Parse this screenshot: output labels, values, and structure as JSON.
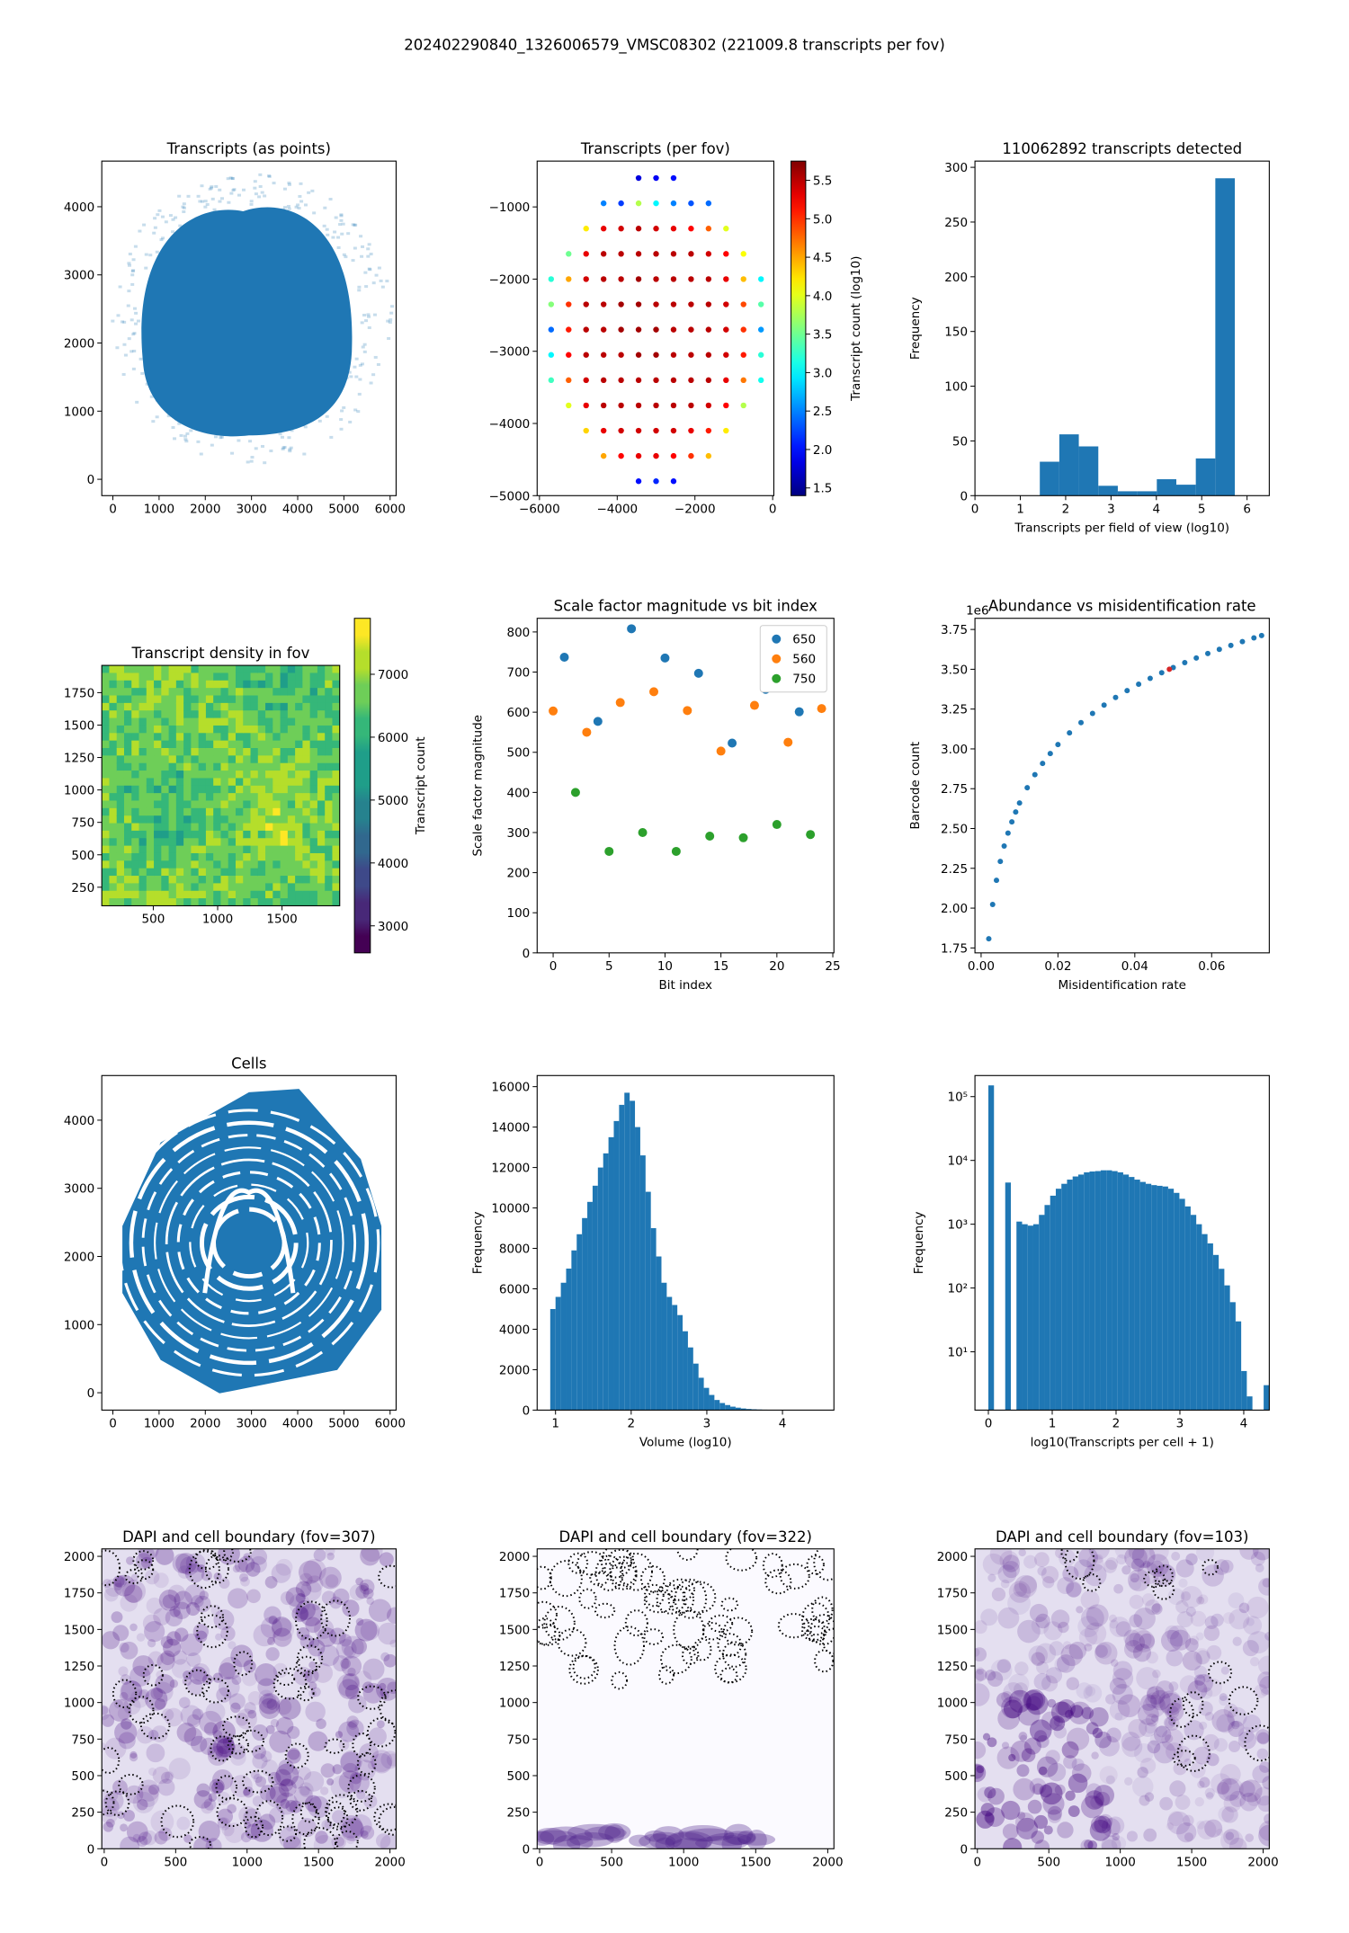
{
  "title": "202402290840_1326006579_VMSC08302 (221009.8 transcripts per fov)",
  "chart_data": [
    {
      "type": "image",
      "title": "Transcripts (as points)",
      "xlim": [
        -240,
        6130
      ],
      "ylim": [
        -240,
        4670
      ],
      "xticks": [
        0,
        1000,
        2000,
        3000,
        4000,
        5000,
        6000
      ],
      "yticks": [
        0,
        1000,
        2000,
        3000,
        4000
      ]
    },
    {
      "type": "grid_scatter",
      "title": "Transcripts (per fov)",
      "xlim": [
        -6060,
        30
      ],
      "ylim": [
        -5000,
        -365
      ],
      "xticks": [
        {
          "value": -6000,
          "label": "−6000"
        },
        {
          "value": -4000,
          "label": "−4000"
        },
        {
          "value": -2000,
          "label": "−2000"
        },
        0
      ],
      "yticks": [
        {
          "value": -5000,
          "label": "−5000"
        },
        {
          "value": -4000,
          "label": "−4000"
        },
        {
          "value": -3000,
          "label": "−3000"
        },
        {
          "value": -2000,
          "label": "−2000"
        },
        {
          "value": -1000,
          "label": "−1000"
        }
      ],
      "x": [
        -5700,
        -5250,
        -4800,
        -4350,
        -3900,
        -3450,
        -3000,
        -2550,
        -2100,
        -1650,
        -1200,
        -750,
        -300
      ],
      "y": [
        -600,
        -950,
        -1300,
        -1650,
        -2000,
        -2350,
        -2700,
        -3050,
        -3400,
        -3750,
        -4100,
        -4450,
        -4800
      ],
      "z": [
        [
          null,
          null,
          null,
          null,
          null,
          1.8,
          1.9,
          2.0,
          null,
          null,
          null,
          null,
          null
        ],
        [
          null,
          null,
          null,
          2.5,
          2.2,
          3.8,
          3.0,
          2.5,
          2.3,
          2.4,
          null,
          null,
          null
        ],
        [
          null,
          null,
          4.2,
          5.3,
          5.4,
          5.5,
          5.4,
          5.3,
          5.2,
          4.8,
          4.0,
          null,
          null
        ],
        [
          null,
          3.5,
          5.3,
          5.5,
          5.5,
          5.5,
          5.5,
          5.5,
          5.5,
          5.4,
          5.2,
          4.1,
          null
        ],
        [
          3.2,
          4.5,
          5.4,
          5.5,
          5.5,
          5.6,
          5.5,
          5.5,
          5.5,
          5.5,
          5.3,
          4.4,
          3.0
        ],
        [
          3.6,
          5.0,
          5.5,
          5.5,
          5.6,
          5.6,
          5.5,
          5.5,
          5.5,
          5.5,
          5.4,
          4.9,
          3.4
        ],
        [
          2.4,
          5.1,
          5.5,
          5.5,
          5.6,
          5.6,
          5.6,
          5.5,
          5.5,
          5.5,
          5.4,
          5.0,
          2.6
        ],
        [
          3.0,
          5.2,
          5.5,
          5.5,
          5.5,
          5.6,
          5.6,
          5.5,
          5.5,
          5.5,
          5.4,
          5.1,
          3.2
        ],
        [
          3.3,
          4.8,
          5.4,
          5.5,
          5.5,
          5.5,
          5.5,
          5.5,
          5.5,
          5.5,
          5.3,
          4.7,
          3.1
        ],
        [
          null,
          4.0,
          5.3,
          5.5,
          5.5,
          5.5,
          5.5,
          5.5,
          5.5,
          5.4,
          5.2,
          3.8,
          null
        ],
        [
          null,
          null,
          4.3,
          5.3,
          5.4,
          5.4,
          5.4,
          5.4,
          5.3,
          5.1,
          4.2,
          null,
          null
        ],
        [
          null,
          null,
          null,
          4.5,
          5.2,
          5.3,
          5.3,
          5.2,
          5.0,
          4.4,
          null,
          null,
          null
        ],
        [
          null,
          null,
          null,
          null,
          null,
          2.0,
          2.1,
          2.0,
          null,
          null,
          null,
          null,
          null
        ]
      ],
      "colorbar": {
        "label": "Transcript count (log10)",
        "colormap": "jet",
        "clim": [
          1.4,
          5.75
        ],
        "ticks": [
          1.5,
          {
            "value": 2,
            "label": "2.0"
          },
          2.5,
          {
            "value": 3,
            "label": "3.0"
          },
          3.5,
          {
            "value": 4,
            "label": "4.0"
          },
          4.5,
          {
            "value": 5,
            "label": "5.0"
          },
          5.5
        ]
      }
    },
    {
      "type": "hist",
      "title": "110062892 transcripts detected",
      "xlabel": "Transcripts per field of view (log10)",
      "ylabel": "Frequency",
      "color": "#1f77b4",
      "xlim": [
        0,
        6.49
      ],
      "ylim": [
        0,
        305.7
      ],
      "xticks": [
        0,
        1,
        2,
        3,
        4,
        5,
        6
      ],
      "yticks": [
        0,
        50,
        100,
        150,
        200,
        250,
        300
      ],
      "bins": [
        1.43,
        1.86,
        2.29,
        2.72,
        3.15,
        3.58,
        4.01,
        4.44,
        4.87,
        5.3,
        5.73
      ],
      "counts": [
        31,
        56,
        45,
        9,
        4,
        4,
        15,
        10,
        34,
        290
      ]
    },
    {
      "type": "image",
      "title": "Transcript density in fov",
      "xlim": [
        100,
        1948
      ],
      "ylim": [
        107,
        1960
      ],
      "xticks": [
        500,
        1000,
        1500
      ],
      "yticks": [
        250,
        500,
        750,
        1000,
        1250,
        1500,
        1750
      ],
      "colorbar": {
        "label": "Transcript count",
        "colormap": "viridis",
        "clim": [
          2570,
          7890
        ],
        "ticks": [
          3000,
          4000,
          5000,
          6000,
          7000
        ]
      }
    },
    {
      "type": "scatter",
      "title": "Scale factor magnitude vs bit index",
      "xlabel": "Bit index",
      "ylabel": "Scale factor magnitude",
      "legend": "upper right",
      "xlim": [
        -1.43,
        25.1
      ],
      "ylim": [
        0,
        834
      ],
      "xticks": [
        0,
        5,
        10,
        15,
        20,
        25
      ],
      "yticks": [
        0,
        100,
        200,
        300,
        400,
        500,
        600,
        700,
        800
      ],
      "series": [
        {
          "name": "650",
          "color": "#1f77b4",
          "x": [
            1,
            4,
            7,
            10,
            13,
            16,
            19,
            22
          ],
          "values": [
            737,
            577,
            808,
            735,
            697,
            523,
            657,
            601
          ]
        },
        {
          "name": "560",
          "color": "#ff7f0e",
          "x": [
            0,
            3,
            6,
            9,
            12,
            15,
            18,
            21,
            24
          ],
          "values": [
            603,
            550,
            624,
            651,
            604,
            503,
            617,
            525,
            609
          ]
        },
        {
          "name": "750",
          "color": "#2ca02c",
          "x": [
            2,
            5,
            8,
            11,
            14,
            17,
            20,
            23
          ],
          "values": [
            400,
            253,
            300,
            253,
            291,
            287,
            320,
            295
          ]
        }
      ]
    },
    {
      "type": "scatter",
      "title": "Abundance vs misidentification rate",
      "xlabel": "Misidentification rate",
      "ylabel": "Barcode count",
      "offset_text": "1e6",
      "marker_size": "small",
      "xlim": [
        -0.0016,
        0.075
      ],
      "ylim": [
        1.719,
        3.82
      ],
      "xticks": [
        {
          "value": 0,
          "label": "0.00"
        },
        0.02,
        0.04,
        0.06
      ],
      "yticks": [
        1.75,
        {
          "value": 2,
          "label": "2.00"
        },
        2.25,
        {
          "value": 2.5,
          "label": "2.50"
        },
        2.75,
        {
          "value": 3,
          "label": "3.00"
        },
        3.25,
        {
          "value": 3.5,
          "label": "3.50"
        },
        3.75
      ],
      "series": [
        {
          "color": "#1f77b4",
          "x": [
            0.002,
            0.003,
            0.004,
            0.005,
            0.006,
            0.007,
            0.008,
            0.009,
            0.01,
            0.012,
            0.014,
            0.016,
            0.018,
            0.02,
            0.023,
            0.026,
            0.029,
            0.032,
            0.035,
            0.038,
            0.041,
            0.044,
            0.047,
            0.05,
            0.053,
            0.056,
            0.059,
            0.062,
            0.065,
            0.068,
            0.071,
            0.073
          ],
          "values": [
            1.808,
            2.023,
            2.175,
            2.293,
            2.39,
            2.471,
            2.542,
            2.604,
            2.66,
            2.756,
            2.838,
            2.909,
            2.971,
            3.027,
            3.101,
            3.165,
            3.223,
            3.275,
            3.323,
            3.366,
            3.406,
            3.443,
            3.478,
            3.511,
            3.542,
            3.571,
            3.599,
            3.625,
            3.65,
            3.674,
            3.697,
            3.712
          ]
        },
        {
          "color": "#d62728",
          "x": [
            0.049
          ],
          "values": [
            3.5
          ]
        }
      ]
    },
    {
      "type": "image",
      "title": "Cells",
      "xlim": [
        -240,
        6130
      ],
      "ylim": [
        -255,
        4655
      ],
      "xticks": [
        0,
        1000,
        2000,
        3000,
        4000,
        5000,
        6000
      ],
      "yticks": [
        0,
        1000,
        2000,
        3000,
        4000
      ]
    },
    {
      "type": "hist",
      "xlabel": "Volume (log10)",
      "ylabel": "Frequency",
      "color": "#1f77b4",
      "xlim": [
        0.757,
        4.68
      ],
      "ylim": [
        0,
        16550
      ],
      "xticks": [
        1,
        2,
        3,
        4
      ],
      "yticks": [
        0,
        2000,
        4000,
        6000,
        8000,
        10000,
        12000,
        14000,
        16000
      ],
      "bins": [
        0.93,
        1,
        1.07,
        1.14,
        1.21,
        1.28,
        1.35,
        1.42,
        1.49,
        1.56,
        1.63,
        1.7,
        1.77,
        1.84,
        1.91,
        1.98,
        2.05,
        2.12,
        2.19,
        2.26,
        2.33,
        2.4,
        2.47,
        2.54,
        2.61,
        2.68,
        2.75,
        2.82,
        2.89,
        2.96,
        3.03,
        3.1,
        3.17,
        3.24,
        3.31,
        3.38,
        3.45,
        3.52,
        3.59,
        3.66,
        3.73,
        3.8,
        3.87,
        3.94,
        4.01,
        4.08,
        4.15,
        4.22,
        4.29,
        4.36,
        4.43,
        4.5,
        4.57
      ],
      "counts": [
        5000,
        5600,
        6300,
        7000,
        7900,
        8700,
        9500,
        10300,
        11100,
        12000,
        12700,
        13500,
        14300,
        15100,
        15700,
        15300,
        14000,
        12600,
        10800,
        9000,
        7600,
        6300,
        5600,
        5200,
        4700,
        3900,
        3100,
        2300,
        1600,
        1100,
        750,
        500,
        350,
        250,
        170,
        120,
        80,
        55,
        40,
        28,
        20,
        14,
        10,
        7,
        5,
        3,
        2,
        2,
        1,
        1,
        0,
        1
      ]
    },
    {
      "type": "hist",
      "xlabel": "log10(Transcripts per cell + 1)",
      "ylabel": "Frequency",
      "color": "#1f77b4",
      "yscale": "log",
      "xlim": [
        -0.21,
        4.4
      ],
      "ylim": [
        1.22,
        214000
      ],
      "xticks": [
        0,
        1,
        2,
        3,
        4
      ],
      "yticks": [
        {
          "value": 10,
          "label": "10¹"
        },
        {
          "value": 100,
          "label": "10²"
        },
        {
          "value": 1000,
          "label": "10³"
        },
        {
          "value": 10000,
          "label": "10⁴"
        },
        {
          "value": 100000,
          "label": "10⁵"
        }
      ],
      "bins": [
        0,
        0.088,
        0.176,
        0.264,
        0.352,
        0.44,
        0.528,
        0.616,
        0.704,
        0.792,
        0.88,
        0.968,
        1.056,
        1.144,
        1.232,
        1.32,
        1.408,
        1.496,
        1.584,
        1.672,
        1.76,
        1.848,
        1.936,
        2.024,
        2.112,
        2.2,
        2.288,
        2.376,
        2.464,
        2.552,
        2.64,
        2.728,
        2.816,
        2.904,
        2.992,
        3.08,
        3.168,
        3.256,
        3.344,
        3.432,
        3.52,
        3.608,
        3.696,
        3.784,
        3.872,
        3.96,
        4.048,
        4.136,
        4.224,
        4.312,
        4.4
      ],
      "counts": [
        150000,
        0,
        0,
        4500,
        0,
        1100,
        1000,
        950,
        1000,
        1400,
        2000,
        2800,
        3600,
        4300,
        5000,
        5600,
        6000,
        6500,
        6700,
        6800,
        7000,
        7000,
        6800,
        6500,
        6000,
        5500,
        5000,
        4600,
        4300,
        4100,
        4000,
        3900,
        3600,
        3100,
        2500,
        1900,
        1400,
        1000,
        700,
        500,
        330,
        200,
        110,
        60,
        30,
        5,
        2,
        0,
        0,
        3
      ]
    },
    {
      "type": "image",
      "title": "DAPI and cell boundary (fov=307)",
      "xlim": [
        -17,
        2043
      ],
      "ylim": [
        0,
        2051
      ],
      "xticks": [
        0,
        500,
        1000,
        1500,
        2000
      ],
      "yticks": [
        0,
        250,
        500,
        750,
        1000,
        1250,
        1500,
        1750,
        2000
      ]
    },
    {
      "type": "image",
      "title": "DAPI and cell boundary (fov=322)",
      "xlim": [
        -17,
        2043
      ],
      "ylim": [
        0,
        2051
      ],
      "xticks": [
        0,
        500,
        1000,
        1500,
        2000
      ],
      "yticks": [
        0,
        250,
        500,
        750,
        1000,
        1250,
        1500,
        1750,
        2000
      ]
    },
    {
      "type": "image",
      "title": "DAPI and cell boundary (fov=103)",
      "xlim": [
        -17,
        2043
      ],
      "ylim": [
        0,
        2051
      ],
      "xticks": [
        0,
        500,
        1000,
        1500,
        2000
      ],
      "yticks": [
        0,
        250,
        500,
        750,
        1000,
        1250,
        1500,
        1750,
        2000
      ]
    }
  ]
}
